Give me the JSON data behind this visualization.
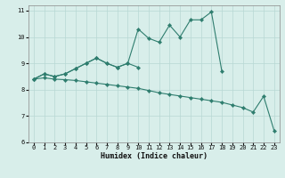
{
  "x_peak": [
    0,
    1,
    2,
    3,
    4,
    5,
    6,
    7,
    8,
    9,
    10,
    11,
    12,
    13,
    14,
    15,
    16,
    17,
    18
  ],
  "y_peak": [
    8.4,
    8.6,
    8.5,
    8.6,
    8.8,
    9.0,
    9.2,
    9.0,
    8.85,
    9.0,
    10.3,
    9.95,
    9.8,
    10.45,
    10.0,
    10.65,
    10.65,
    10.95,
    8.7
  ],
  "x_hump": [
    0,
    1,
    2,
    3,
    4,
    5,
    6,
    7,
    8,
    9,
    10
  ],
  "y_hump": [
    8.4,
    8.6,
    8.5,
    8.6,
    8.8,
    9.0,
    9.2,
    9.0,
    8.85,
    9.0,
    8.85
  ],
  "x_decline": [
    0,
    1,
    2,
    3,
    4,
    5,
    6,
    7,
    8,
    9,
    10,
    11,
    12,
    13,
    14,
    15,
    16,
    17,
    18,
    19,
    20,
    21,
    22,
    23
  ],
  "y_decline": [
    8.4,
    8.45,
    8.4,
    8.38,
    8.35,
    8.3,
    8.25,
    8.2,
    8.15,
    8.1,
    8.05,
    7.97,
    7.88,
    7.82,
    7.76,
    7.7,
    7.64,
    7.58,
    7.52,
    7.42,
    7.32,
    7.15,
    7.75,
    6.45
  ],
  "ylim": [
    6,
    11.2
  ],
  "xlim": [
    -0.5,
    23.5
  ],
  "yticks": [
    6,
    7,
    8,
    9,
    10,
    11
  ],
  "xticks": [
    0,
    1,
    2,
    3,
    4,
    5,
    6,
    7,
    8,
    9,
    10,
    11,
    12,
    13,
    14,
    15,
    16,
    17,
    18,
    19,
    20,
    21,
    22,
    23
  ],
  "xlabel": "Humidex (Indice chaleur)",
  "line_color": "#2e7d6e",
  "bg_color": "#d8eeea",
  "grid_color": "#b8d8d4",
  "marker_size": 2.2,
  "linewidth": 0.8,
  "tick_fontsize": 5.0,
  "xlabel_fontsize": 6.0
}
